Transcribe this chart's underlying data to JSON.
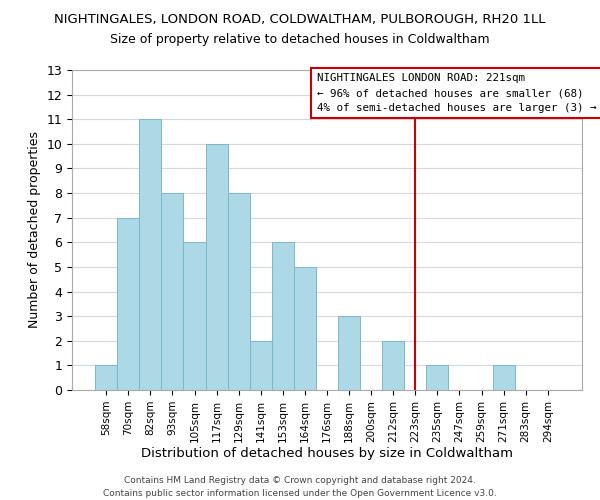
{
  "title": "NIGHTINGALES, LONDON ROAD, COLDWALTHAM, PULBOROUGH, RH20 1LL",
  "subtitle": "Size of property relative to detached houses in Coldwaltham",
  "xlabel": "Distribution of detached houses by size in Coldwaltham",
  "ylabel": "Number of detached properties",
  "bar_labels": [
    "58sqm",
    "70sqm",
    "82sqm",
    "93sqm",
    "105sqm",
    "117sqm",
    "129sqm",
    "141sqm",
    "153sqm",
    "164sqm",
    "176sqm",
    "188sqm",
    "200sqm",
    "212sqm",
    "223sqm",
    "235sqm",
    "247sqm",
    "259sqm",
    "271sqm",
    "283sqm",
    "294sqm"
  ],
  "bar_values": [
    1,
    7,
    11,
    8,
    6,
    10,
    8,
    2,
    6,
    5,
    0,
    3,
    0,
    2,
    0,
    1,
    0,
    0,
    1,
    0,
    0
  ],
  "bar_color": "#add8e6",
  "bar_edgecolor": "#7ab8cc",
  "ylim": [
    0,
    13
  ],
  "yticks": [
    0,
    1,
    2,
    3,
    4,
    5,
    6,
    7,
    8,
    9,
    10,
    11,
    12,
    13
  ],
  "vline_x_index": 14,
  "vline_color": "#cc0000",
  "legend_title": "NIGHTINGALES LONDON ROAD: 221sqm",
  "legend_line1": "← 96% of detached houses are smaller (68)",
  "legend_line2": "4% of semi-detached houses are larger (3) →",
  "legend_box_color": "#ffffff",
  "legend_box_edgecolor": "#cc0000",
  "footer1": "Contains HM Land Registry data © Crown copyright and database right 2024.",
  "footer2": "Contains public sector information licensed under the Open Government Licence v3.0.",
  "background_color": "#ffffff",
  "grid_color": "#d0d8e0"
}
